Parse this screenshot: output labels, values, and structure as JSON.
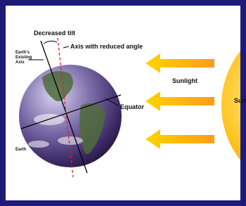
{
  "labels": {
    "decreased_tilt": "Decreased tilt",
    "axis_reduced": "Axis with reduced angle",
    "existing_axis": [
      "Earth's",
      "Existing",
      "Axis"
    ],
    "equator": "Equator",
    "earth": "Earth",
    "sunlight": "Sunlight",
    "sun": "Sun"
  }
}
